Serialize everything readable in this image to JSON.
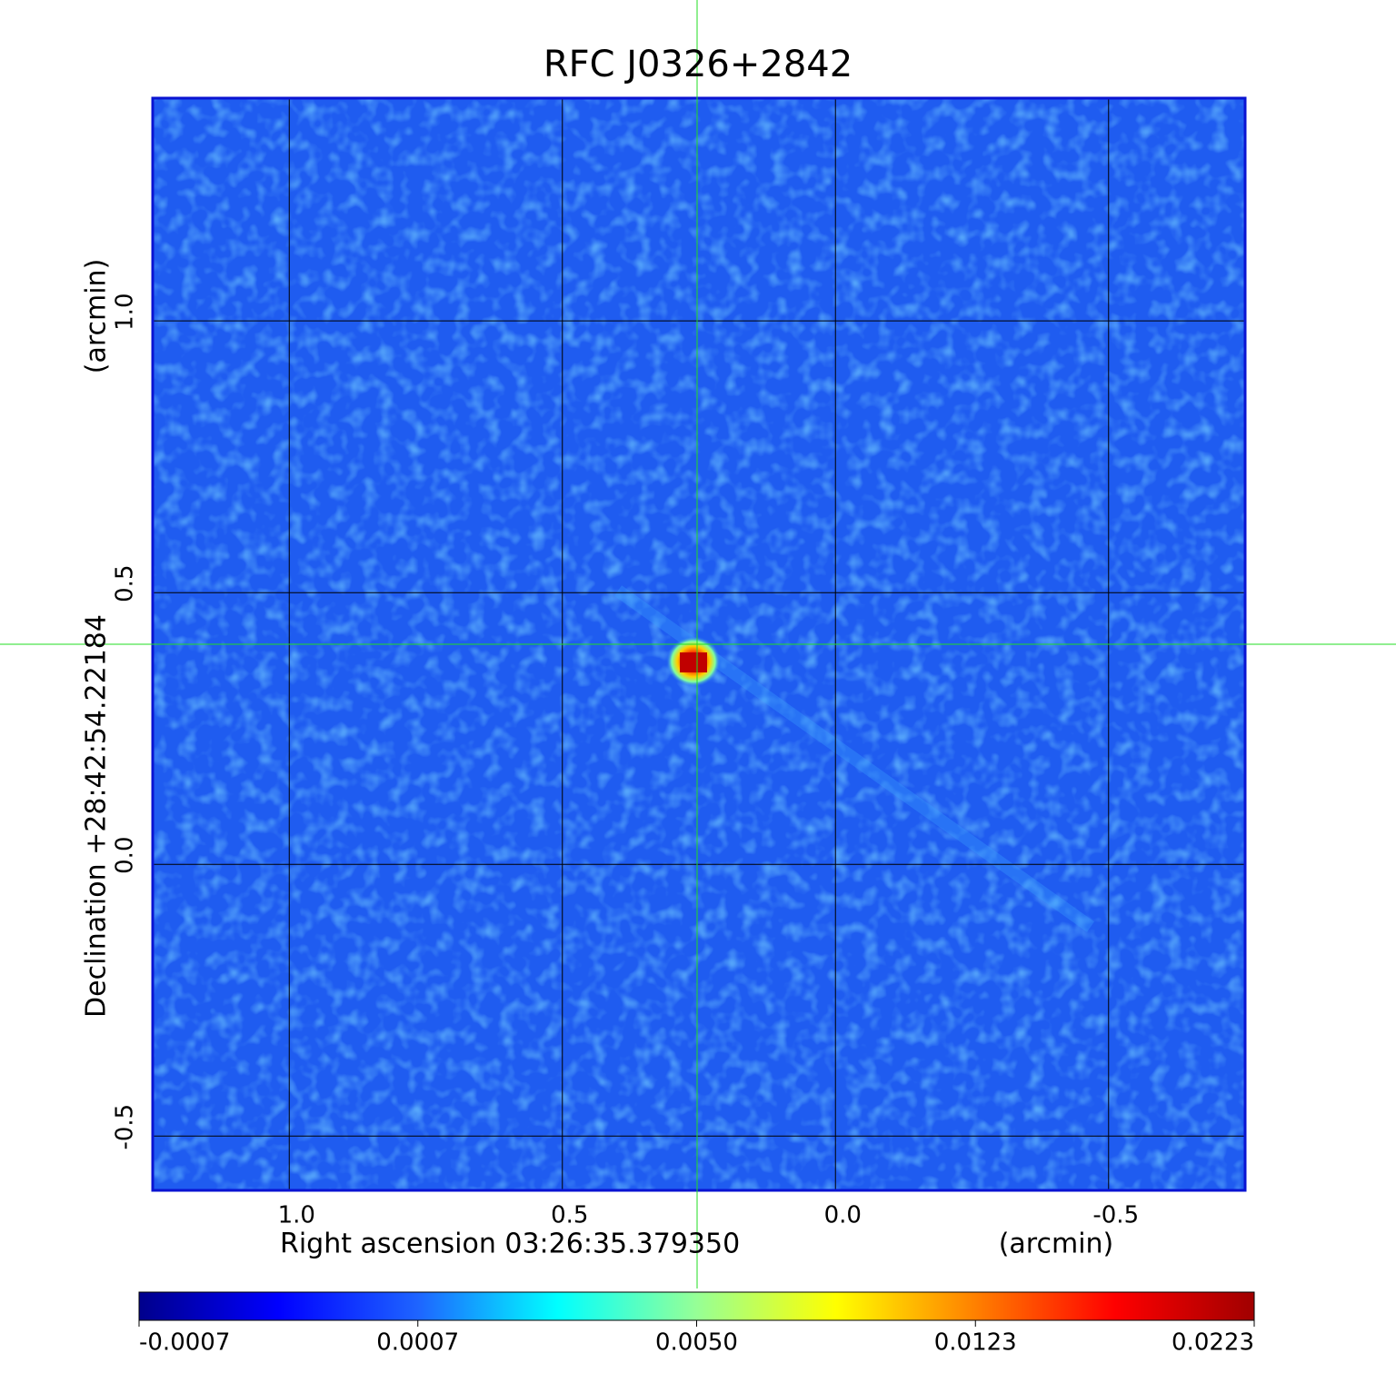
{
  "chart_data": {
    "type": "image",
    "title": "RFC J0326+2842",
    "x_label": "Right ascension  03:26:35.379350",
    "x_unit": "(arcmin)",
    "y_label": "Declination  +28:42:54.22184",
    "y_unit": "(arcmin)",
    "xlim": [
      1.25,
      -0.75
    ],
    "ylim": [
      -0.6,
      1.41
    ],
    "xticks": [
      {
        "value": 1,
        "label": "1.0"
      },
      {
        "value": 0.5,
        "label": "0.5"
      },
      {
        "value": 0,
        "label": "0.0"
      },
      {
        "value": -0.5,
        "label": "-0.5"
      }
    ],
    "yticks": [
      {
        "value": 1,
        "label": "1.0"
      },
      {
        "value": 0.5,
        "label": "0.5"
      },
      {
        "value": 0,
        "label": "0.0"
      },
      {
        "value": -0.5,
        "label": "-0.5"
      }
    ],
    "grid": true,
    "grid_color": "#000000",
    "frame_color": "#0a14d2",
    "title_color": "#1414c8",
    "colorbar": {
      "lim": [
        -0.0007,
        0.0223
      ],
      "ticks": [
        -0.0007,
        0.0007,
        {
          "value": 0.005,
          "label": "0.0050"
        },
        0.0123,
        0.0223
      ],
      "colors": [
        "#00008c",
        "#0000ff",
        "#1e64ff",
        "#00ffff",
        "#96ff96",
        "#ffff00",
        "#ff8000",
        "#ff0000",
        "#a00000"
      ]
    }
  }
}
